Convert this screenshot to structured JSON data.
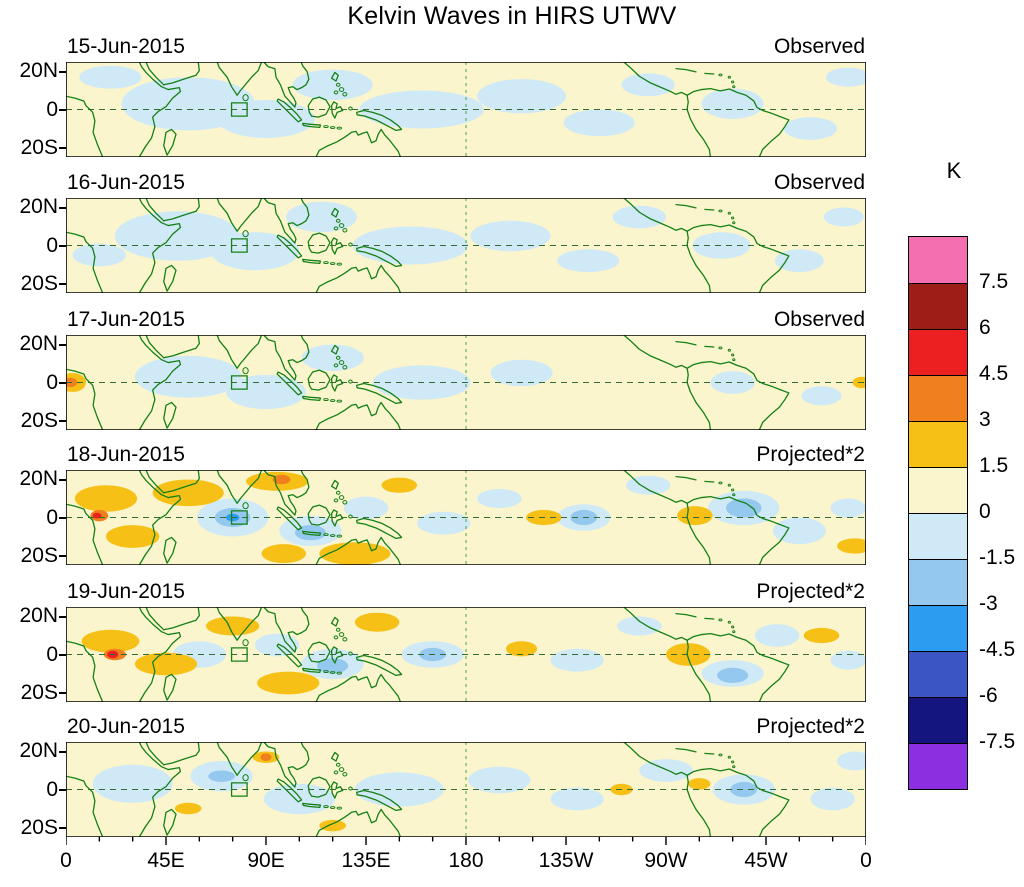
{
  "chart_data": {
    "type": "heatmap",
    "title": "Kelvin Waves in HIRS UTWV",
    "y_ticks": [
      "20N",
      "0",
      "20S"
    ],
    "x_ticks": [
      "0",
      "45E",
      "90E",
      "135E",
      "180",
      "135W",
      "90W",
      "45W",
      "0"
    ],
    "lon_range_deg": [
      0,
      360
    ],
    "lat_range_deg": [
      -25,
      25
    ],
    "grid": {
      "equator_dashed": true,
      "dateline_dashed": true
    },
    "region_marker": {
      "lon": [
        74.5,
        81.5
      ],
      "lat": [
        -3.5,
        3.5
      ]
    },
    "colorbar": {
      "unit_label": "K",
      "tick_labels": [
        "7.5",
        "6",
        "4.5",
        "3",
        "1.5",
        "0",
        "-1.5",
        "-3",
        "-4.5",
        "-6",
        "-7.5"
      ],
      "levels": [
        7.5,
        6,
        4.5,
        3,
        1.5,
        0,
        -1.5,
        -3,
        -4.5,
        -6,
        -7.5
      ],
      "colors_top_to_bottom": [
        "#f46fb0",
        "#9e1d16",
        "#ec2020",
        "#f07f1e",
        "#f6c017",
        "#faf5cd",
        "#cfe9f7",
        "#94c8ee",
        "#2b9cf0",
        "#3b55c4",
        "#15157f",
        "#8b2fe0"
      ]
    },
    "features_format": "[lon_deg, lat_deg, rx_deg, ry_deg, colorbar_color_index]",
    "panels": [
      {
        "date": "15-Jun-2015",
        "source": "Observed",
        "features": [
          [
            20,
            17,
            14,
            6,
            6
          ],
          [
            55,
            3,
            30,
            14,
            6
          ],
          [
            90,
            -5,
            22,
            10,
            6
          ],
          [
            120,
            13,
            18,
            8,
            6
          ],
          [
            160,
            0,
            28,
            10,
            6
          ],
          [
            205,
            7,
            20,
            9,
            6
          ],
          [
            240,
            -7,
            16,
            7,
            6
          ],
          [
            262,
            13,
            12,
            6,
            6
          ],
          [
            300,
            3,
            14,
            8,
            6
          ],
          [
            335,
            -10,
            12,
            6,
            6
          ],
          [
            352,
            17,
            10,
            5,
            6
          ]
        ]
      },
      {
        "date": "16-Jun-2015",
        "source": "Observed",
        "features": [
          [
            15,
            -5,
            12,
            6,
            6
          ],
          [
            50,
            5,
            28,
            13,
            6
          ],
          [
            85,
            -3,
            20,
            10,
            6
          ],
          [
            115,
            15,
            16,
            8,
            6
          ],
          [
            155,
            0,
            26,
            10,
            6
          ],
          [
            200,
            5,
            18,
            8,
            6
          ],
          [
            235,
            -8,
            14,
            6,
            6
          ],
          [
            258,
            15,
            12,
            6,
            6
          ],
          [
            295,
            0,
            13,
            7,
            6
          ],
          [
            330,
            -8,
            11,
            6,
            6
          ],
          [
            350,
            15,
            9,
            5,
            6
          ]
        ]
      },
      {
        "date": "17-Jun-2015",
        "source": "Observed",
        "features": [
          [
            55,
            3,
            24,
            11,
            6
          ],
          [
            90,
            -5,
            18,
            9,
            6
          ],
          [
            120,
            13,
            14,
            7,
            6
          ],
          [
            160,
            0,
            22,
            9,
            6
          ],
          [
            205,
            5,
            14,
            7,
            6
          ],
          [
            300,
            0,
            10,
            6,
            6
          ],
          [
            340,
            -7,
            9,
            5,
            6
          ],
          [
            3,
            0,
            6,
            5,
            4
          ],
          [
            2,
            0,
            3,
            2.5,
            3
          ],
          [
            358,
            0,
            4,
            3,
            4
          ]
        ]
      },
      {
        "date": "18-Jun-2015",
        "source": "Projected*2",
        "features": [
          [
            75,
            0,
            16,
            10,
            6
          ],
          [
            110,
            -7,
            14,
            8,
            6
          ],
          [
            135,
            5,
            10,
            6,
            6
          ],
          [
            170,
            -3,
            12,
            6,
            6
          ],
          [
            195,
            10,
            10,
            5,
            6
          ],
          [
            233,
            0,
            12,
            7,
            6
          ],
          [
            262,
            17,
            10,
            5,
            6
          ],
          [
            305,
            5,
            16,
            9,
            6
          ],
          [
            330,
            -7,
            12,
            7,
            6
          ],
          [
            352,
            5,
            8,
            5,
            6
          ],
          [
            75,
            0,
            8,
            5,
            7
          ],
          [
            110,
            -8,
            7,
            4,
            7
          ],
          [
            305,
            5,
            8,
            5,
            7
          ],
          [
            233,
            0,
            6,
            4,
            7
          ],
          [
            75,
            0,
            3,
            2,
            8
          ],
          [
            18,
            10,
            14,
            7,
            4
          ],
          [
            30,
            -10,
            12,
            6,
            4
          ],
          [
            55,
            13,
            16,
            7,
            4
          ],
          [
            95,
            19,
            14,
            5,
            4
          ],
          [
            130,
            -19,
            16,
            6,
            4
          ],
          [
            98,
            -19,
            10,
            5,
            4
          ],
          [
            215,
            0,
            8,
            4,
            4
          ],
          [
            283,
            1,
            8,
            5,
            4
          ],
          [
            355,
            -15,
            8,
            4,
            4
          ],
          [
            150,
            17,
            8,
            4,
            4
          ],
          [
            15,
            1,
            4,
            3,
            3
          ],
          [
            97,
            20,
            4,
            2.5,
            3
          ],
          [
            14,
            1,
            2,
            1.5,
            2
          ]
        ]
      },
      {
        "date": "19-Jun-2015",
        "source": "Projected*2",
        "features": [
          [
            60,
            0,
            12,
            7,
            6
          ],
          [
            95,
            5,
            10,
            6,
            6
          ],
          [
            120,
            -5,
            14,
            8,
            6
          ],
          [
            165,
            0,
            14,
            7,
            6
          ],
          [
            230,
            -3,
            12,
            6,
            6
          ],
          [
            258,
            15,
            10,
            5,
            6
          ],
          [
            300,
            -10,
            14,
            7,
            6
          ],
          [
            320,
            10,
            10,
            6,
            6
          ],
          [
            352,
            -3,
            8,
            5,
            6
          ],
          [
            120,
            -6,
            7,
            4,
            7
          ],
          [
            300,
            -11,
            7,
            4,
            7
          ],
          [
            165,
            0,
            6,
            3.5,
            7
          ],
          [
            20,
            7,
            13,
            6,
            4
          ],
          [
            45,
            -5,
            14,
            6,
            4
          ],
          [
            75,
            15,
            12,
            5,
            4
          ],
          [
            100,
            -15,
            14,
            6,
            4
          ],
          [
            140,
            17,
            10,
            5,
            4
          ],
          [
            205,
            3,
            7,
            4,
            4
          ],
          [
            280,
            0,
            10,
            6,
            4
          ],
          [
            340,
            10,
            8,
            4,
            4
          ],
          [
            22,
            0,
            5,
            3,
            3
          ],
          [
            21,
            0,
            2.5,
            2,
            2
          ]
        ]
      },
      {
        "date": "20-Jun-2015",
        "source": "Projected*2",
        "features": [
          [
            30,
            3,
            18,
            10,
            6
          ],
          [
            70,
            7,
            14,
            8,
            6
          ],
          [
            105,
            -5,
            16,
            8,
            6
          ],
          [
            150,
            0,
            20,
            9,
            6
          ],
          [
            195,
            5,
            14,
            7,
            6
          ],
          [
            230,
            -5,
            12,
            6,
            6
          ],
          [
            270,
            10,
            12,
            6,
            6
          ],
          [
            305,
            0,
            14,
            8,
            6
          ],
          [
            345,
            -5,
            10,
            6,
            6
          ],
          [
            355,
            15,
            8,
            5,
            6
          ],
          [
            70,
            7,
            6,
            3,
            7
          ],
          [
            305,
            0,
            6,
            4,
            7
          ],
          [
            55,
            -10,
            6,
            3,
            4
          ],
          [
            90,
            17,
            6,
            3,
            4
          ],
          [
            120,
            -19,
            6,
            3,
            4
          ],
          [
            250,
            0,
            5,
            3,
            4
          ],
          [
            285,
            3,
            5,
            3,
            4
          ],
          [
            90,
            17,
            2.5,
            2,
            3
          ]
        ]
      }
    ]
  }
}
